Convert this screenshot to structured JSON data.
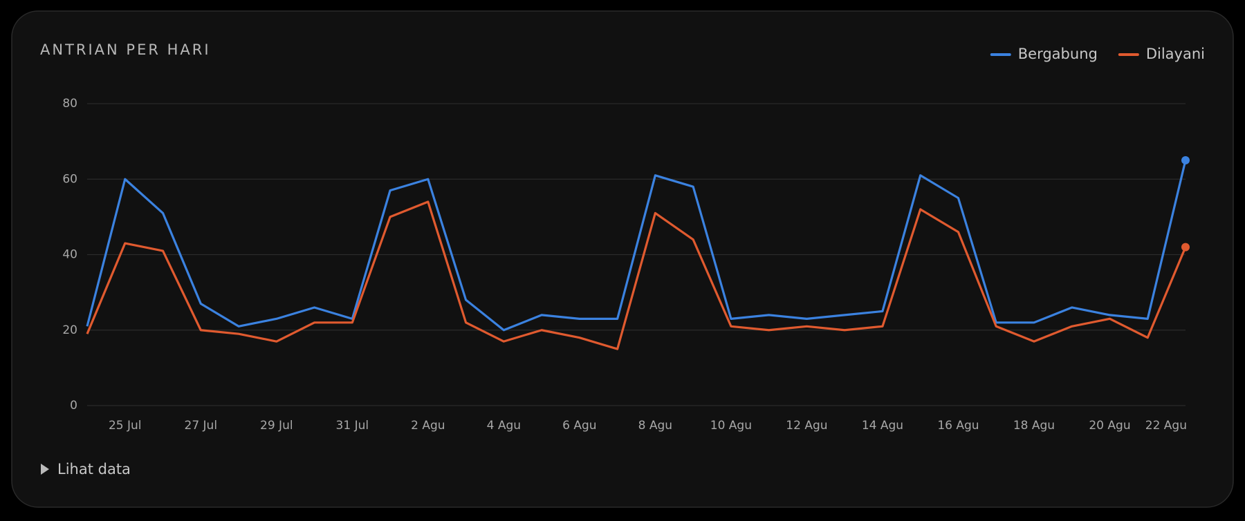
{
  "chart_data": {
    "type": "line",
    "title": "ANTRIAN PER HARI",
    "categories": [
      null,
      "25 Jul",
      null,
      "27 Jul",
      null,
      "29 Jul",
      null,
      "31 Jul",
      null,
      "2 Agu",
      null,
      "4 Agu",
      null,
      "6 Agu",
      null,
      "8 Agu",
      null,
      "10 Agu",
      null,
      "12 Agu",
      null,
      "14 Agu",
      null,
      "16 Agu",
      null,
      "18 Agu",
      null,
      "20 Agu",
      null,
      "22 Agu"
    ],
    "series": [
      {
        "name": "Bergabung",
        "color": "#3b82e0",
        "values": [
          21,
          60,
          51,
          27,
          21,
          23,
          26,
          23,
          57,
          60,
          28,
          20,
          24,
          23,
          23,
          61,
          58,
          23,
          24,
          23,
          24,
          25,
          61,
          55,
          22,
          22,
          26,
          24,
          23,
          65
        ]
      },
      {
        "name": "Dilayani",
        "color": "#e05a2f",
        "values": [
          19,
          43,
          41,
          20,
          19,
          17,
          22,
          22,
          50,
          54,
          22,
          17,
          20,
          18,
          15,
          51,
          44,
          21,
          20,
          21,
          20,
          21,
          52,
          46,
          21,
          17,
          21,
          23,
          18,
          42
        ]
      }
    ],
    "ylim": [
      0,
      80
    ],
    "yticks": [
      0,
      20,
      40,
      60,
      80
    ],
    "grid": true,
    "legend": "top-right"
  },
  "toggle": {
    "label": "Lihat data"
  }
}
